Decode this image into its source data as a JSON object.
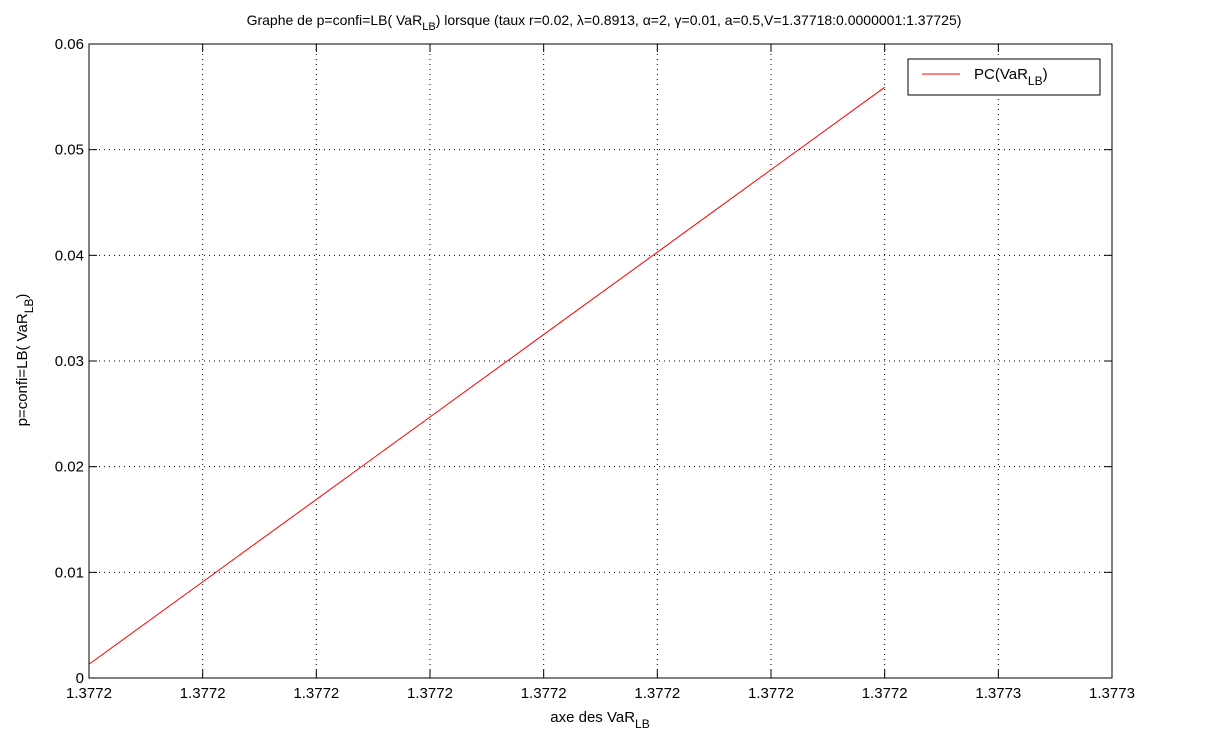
{
  "chart_data": {
    "type": "line",
    "title": [
      "Graphe de p=confi=LB( VaR",
      "LB",
      ") lorsque (taux r=0.02, λ=0.8913, α=2, γ=0.01, a=0.5,V=1.37718:0.0000001:1.37725)"
    ],
    "xlabel": [
      "axe des VaR",
      "LB"
    ],
    "ylabel": [
      "p=confi=LB( VaR",
      "LB",
      ")"
    ],
    "x": [
      1.37718,
      1.37719,
      1.3772,
      1.37721,
      1.37722,
      1.37723,
      1.37724,
      1.37725
    ],
    "series": [
      {
        "name": [
          "PC(VaR",
          "LB",
          ")"
        ],
        "color": "#ff0000",
        "values": [
          0.0013,
          0.0091,
          0.0169,
          0.0247,
          0.0325,
          0.0403,
          0.0481,
          0.0559
        ]
      }
    ],
    "xlim": [
      1.37718,
      1.37727
    ],
    "xticks": [
      {
        "value": 1.37718,
        "label": "1.3772"
      },
      {
        "value": 1.37719,
        "label": "1.3772"
      },
      {
        "value": 1.3772,
        "label": "1.3772"
      },
      {
        "value": 1.37721,
        "label": "1.3772"
      },
      {
        "value": 1.37722,
        "label": "1.3772"
      },
      {
        "value": 1.37723,
        "label": "1.3772"
      },
      {
        "value": 1.37724,
        "label": "1.3772"
      },
      {
        "value": 1.37725,
        "label": "1.3772"
      },
      {
        "value": 1.37726,
        "label": "1.3773"
      },
      {
        "value": 1.37727,
        "label": "1.3773"
      }
    ],
    "ylim": [
      0,
      0.06
    ],
    "yticks": [
      0,
      0.01,
      0.02,
      0.03,
      0.04,
      0.05,
      0.06
    ],
    "grid": true,
    "legend": "northeast"
  }
}
